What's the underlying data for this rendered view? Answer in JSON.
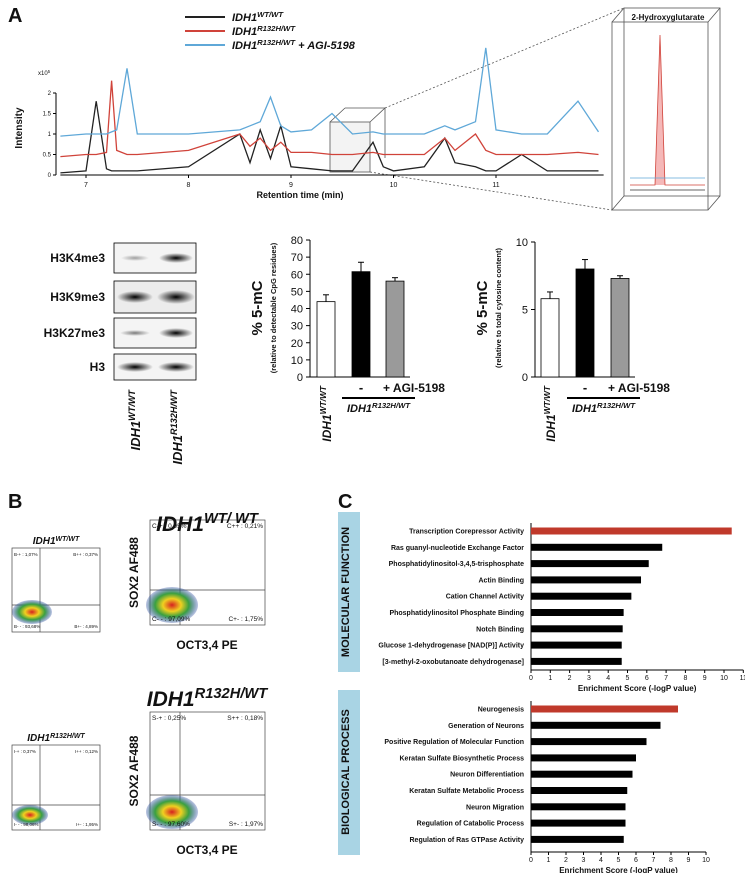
{
  "panels": {
    "a": "A",
    "b": "B",
    "c": "C"
  },
  "chart_data": [
    {
      "type": "line",
      "x_label": "Retention time (min)",
      "y_label": "Intensity",
      "y_multiplier": {
        "base": "x10",
        "exponent": "5"
      },
      "inset_label": "2-Hydroxyglutarate",
      "x": [
        6.75,
        7.0,
        7.1,
        7.2,
        7.25,
        7.3,
        7.4,
        7.5,
        8.0,
        8.5,
        8.6,
        8.7,
        8.8,
        8.9,
        9.0,
        9.2,
        9.4,
        9.6,
        9.8,
        9.9,
        10.0,
        10.3,
        10.5,
        10.6,
        10.8,
        10.9,
        11.0,
        11.25,
        11.5,
        11.8,
        12.0
      ],
      "xlim": [
        6.75,
        12.05
      ],
      "xticks": [
        7,
        8,
        9,
        10,
        11
      ],
      "ylim": [
        0,
        3.2
      ],
      "yticks": [
        0,
        0.5,
        1,
        1.5,
        2
      ],
      "series": [
        {
          "name": "IDH1",
          "name_superscript": "WT/WT",
          "color": "#222222",
          "values": [
            0.05,
            0.1,
            1.8,
            0.15,
            0.1,
            0.1,
            0.1,
            0.1,
            0.2,
            1.0,
            0.3,
            1.1,
            0.4,
            1.2,
            0.2,
            0.15,
            0.1,
            0.1,
            0.8,
            0.2,
            0.1,
            0.2,
            0.9,
            0.3,
            0.2,
            0.1,
            0.1,
            0.5,
            0.1,
            0.1,
            0.1
          ]
        },
        {
          "name": "IDH1",
          "name_superscript": "R132H/WT",
          "color": "#d0433a",
          "values": [
            0.45,
            0.5,
            0.5,
            0.55,
            2.3,
            0.6,
            0.5,
            0.5,
            0.6,
            1.0,
            0.7,
            0.9,
            0.6,
            0.8,
            0.55,
            0.55,
            0.5,
            0.5,
            0.55,
            0.5,
            0.5,
            0.5,
            0.9,
            0.6,
            1.0,
            0.6,
            0.5,
            0.5,
            0.5,
            0.55,
            0.5
          ]
        },
        {
          "name": "IDH1",
          "name_superscript": "R132H/WT",
          "name_suffix": " + AGI-5198",
          "color": "#5fa8d8",
          "values": [
            0.95,
            1.0,
            1.0,
            1.0,
            1.05,
            1.1,
            2.6,
            1.0,
            1.0,
            1.1,
            1.2,
            1.3,
            1.9,
            1.2,
            1.05,
            1.1,
            1.5,
            1.0,
            1.05,
            1.0,
            1.0,
            1.0,
            1.2,
            1.1,
            1.3,
            3.1,
            1.1,
            1.0,
            1.0,
            1.8,
            1.05
          ]
        }
      ]
    },
    {
      "type": "bar",
      "y_label": "% 5-mC",
      "y_sublabel": "(relative to detectable CpG residues)",
      "categories": [
        "IDH1",
        "-",
        "+ AGI-5198"
      ],
      "category_superscripts": [
        "WT/WT",
        null,
        null
      ],
      "group_label": {
        "text": "IDH1",
        "superscript": "R132H/WT"
      },
      "values": [
        44,
        61.5,
        56
      ],
      "errors": [
        4,
        5.5,
        2
      ],
      "colors": [
        "#ffffff",
        "#000000",
        "#9a9a9a"
      ],
      "ylim": [
        0,
        80
      ],
      "yticks": [
        0,
        10,
        20,
        30,
        40,
        50,
        60,
        70,
        80
      ]
    },
    {
      "type": "bar",
      "y_label": "% 5-mC",
      "y_sublabel": "(relative to total cytosine content)",
      "categories": [
        "IDH1",
        "-",
        "+ AGI-5198"
      ],
      "category_superscripts": [
        "WT/WT",
        null,
        null
      ],
      "group_label": {
        "text": "IDH1",
        "superscript": "R132H/WT"
      },
      "values": [
        5.8,
        8.0,
        7.3
      ],
      "errors": [
        0.5,
        0.7,
        0.2
      ],
      "colors": [
        "#ffffff",
        "#000000",
        "#9a9a9a"
      ],
      "ylim": [
        0,
        10
      ],
      "yticks": [
        0,
        5,
        10
      ]
    },
    {
      "type": "hbar",
      "side_label": "MOLECULAR FUNCTION",
      "x_label": "Enrichment Score (-logP value)",
      "categories": [
        "Transcription Corepressor Activity",
        "Ras guanyl-nucleotide Exchange Factor",
        "Phosphatidylinositol-3,4,5-trisphosphate",
        "Actin Binding",
        "Cation Channel Activity",
        "Phosphatidylinositol Phosphate Binding",
        "Notch Binding",
        "Glucose 1-dehydrogenase [NAD(P)] Activity",
        "[3-methyl-2-oxobutanoate dehydrogenase]"
      ],
      "values": [
        10.4,
        6.8,
        6.1,
        5.7,
        5.2,
        4.8,
        4.75,
        4.7,
        4.7
      ],
      "colors": [
        "#c0392b",
        "#000000",
        "#000000",
        "#000000",
        "#000000",
        "#000000",
        "#000000",
        "#000000",
        "#000000"
      ],
      "xlim": [
        0,
        11
      ],
      "xticks": [
        0,
        1,
        2,
        3,
        4,
        5,
        6,
        7,
        8,
        9,
        10,
        11
      ]
    },
    {
      "type": "hbar",
      "side_label": "BIOLOGICAL PROCESS",
      "x_label": "Enrichment Score (-logP value)",
      "categories": [
        "Neurogenesis",
        "Generation of Neurons",
        "Positive Regulation of Molecular Function",
        "Keratan Sulfate Biosynthetic Process",
        "Neuron Differentiation",
        "Keratan Sulfate Metabolic Process",
        "Neuron Migration",
        "Regulation of Catabolic Process",
        "Regulation of Ras GTPase Activity"
      ],
      "values": [
        8.4,
        7.4,
        6.6,
        6.0,
        5.8,
        5.5,
        5.4,
        5.4,
        5.3
      ],
      "colors": [
        "#c0392b",
        "#000000",
        "#000000",
        "#000000",
        "#000000",
        "#000000",
        "#000000",
        "#000000",
        "#000000"
      ],
      "xlim": [
        0,
        10
      ],
      "xticks": [
        0,
        1,
        2,
        3,
        4,
        5,
        6,
        7,
        8,
        9,
        10
      ]
    }
  ],
  "western_blot": {
    "rows": [
      "H3K4me3",
      "H3K9me3",
      "H3K27me3",
      "H3"
    ],
    "lanes": [
      {
        "text": "IDH1",
        "superscript": "WT/WT"
      },
      {
        "text": "IDH1",
        "superscript": "R132H/WT"
      }
    ]
  },
  "flow_cytometry": {
    "y_label": "SOX2 AF488",
    "x_label": "OCT3,4 PE",
    "groups": [
      {
        "title": {
          "text": "IDH1",
          "superscript": "WT/ WT"
        },
        "small_title": {
          "text": "IDH1",
          "superscript": "WT/WT"
        },
        "small_quadrants": [
          "B-+ : 1,07%",
          "B++ : 0,37%",
          "B- - : 93,68%",
          "B+- : 4,89%"
        ],
        "quadrants": [
          "C-+ : 0,95%",
          "C++ : 0,21%",
          "C- - : 97,09%",
          "C+- : 1,75%"
        ]
      },
      {
        "title": {
          "text": "IDH1",
          "superscript": "R132H/WT"
        },
        "small_title": {
          "text": "IDH1",
          "superscript": "R132H/WT"
        },
        "small_quadrants": [
          "I-+ : 0,37%",
          "I++ : 0,12%",
          "I- - : 98,06%",
          "I+- : 1,95%"
        ],
        "quadrants": [
          "S-+ : 0,25%",
          "S++ : 0,18%",
          "S- - : 97,60%",
          "S+- : 1,97%"
        ]
      }
    ]
  }
}
